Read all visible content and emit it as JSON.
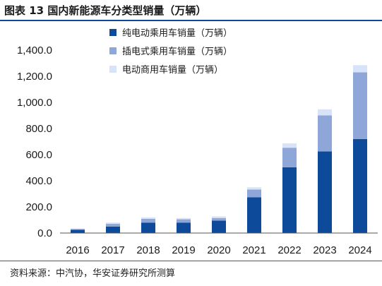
{
  "header": {
    "title": "图表 13  国内新能源车分类型销量（万辆）"
  },
  "footer": {
    "source": "资料来源：中汽协，华安证券研究所测算"
  },
  "chart_data": {
    "type": "bar",
    "stacked": true,
    "categories": [
      "2016",
      "2017",
      "2018",
      "2019",
      "2020",
      "2021",
      "2022",
      "2023",
      "2024"
    ],
    "series": [
      {
        "name": "纯电动乘用车销量（万辆）",
        "color": "#0d4a9a",
        "values": [
          25,
          50,
          80,
          80,
          95,
          273,
          503,
          625,
          720
        ]
      },
      {
        "name": "插电式乘用车销量（万辆）",
        "color": "#8fa6d9",
        "values": [
          5,
          20,
          28,
          25,
          20,
          60,
          150,
          275,
          510
        ]
      },
      {
        "name": "电动商用车销量（万辆）",
        "color": "#d7e3f8",
        "values": [
          5,
          10,
          12,
          10,
          12,
          17,
          33,
          47,
          55
        ]
      }
    ],
    "ylim": [
      0,
      1400
    ],
    "yticks": [
      "0.0",
      "200.0",
      "400.0",
      "600.0",
      "800.0",
      "1,000.0",
      "1,200.0",
      "1,400.0"
    ],
    "grid": false,
    "legend_position": "top-right"
  }
}
